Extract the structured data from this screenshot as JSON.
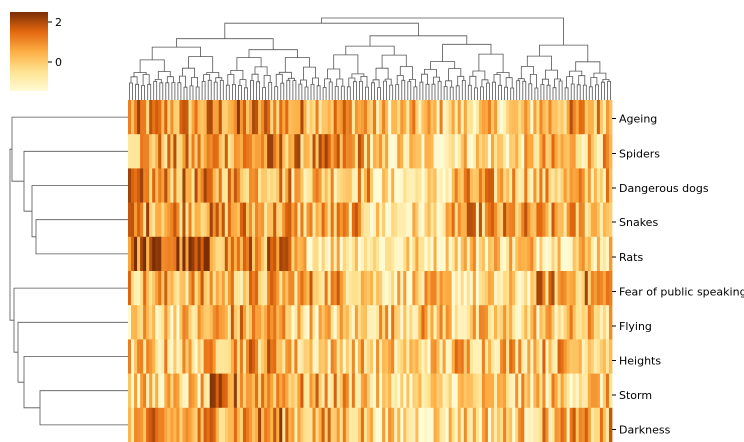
{
  "chart_data": {
    "type": "heatmap",
    "title": "",
    "xlabel": "",
    "ylabel": "",
    "rows": [
      "Ageing",
      "Spiders",
      "Dangerous dogs",
      "Snakes",
      "Rats",
      "Fear of public speaking",
      "Flying",
      "Heights",
      "Storm",
      "Darkness"
    ],
    "n_columns": 160,
    "colormap": "YlOrBr",
    "colorbar": {
      "ticks": [
        2,
        0
      ],
      "range": [
        -1,
        2.4
      ]
    },
    "column_dendrogram": true,
    "row_dendrogram": true,
    "colors": {
      "low": "#fffbd5",
      "high": "#7a2e05",
      "line": "#555555"
    }
  }
}
